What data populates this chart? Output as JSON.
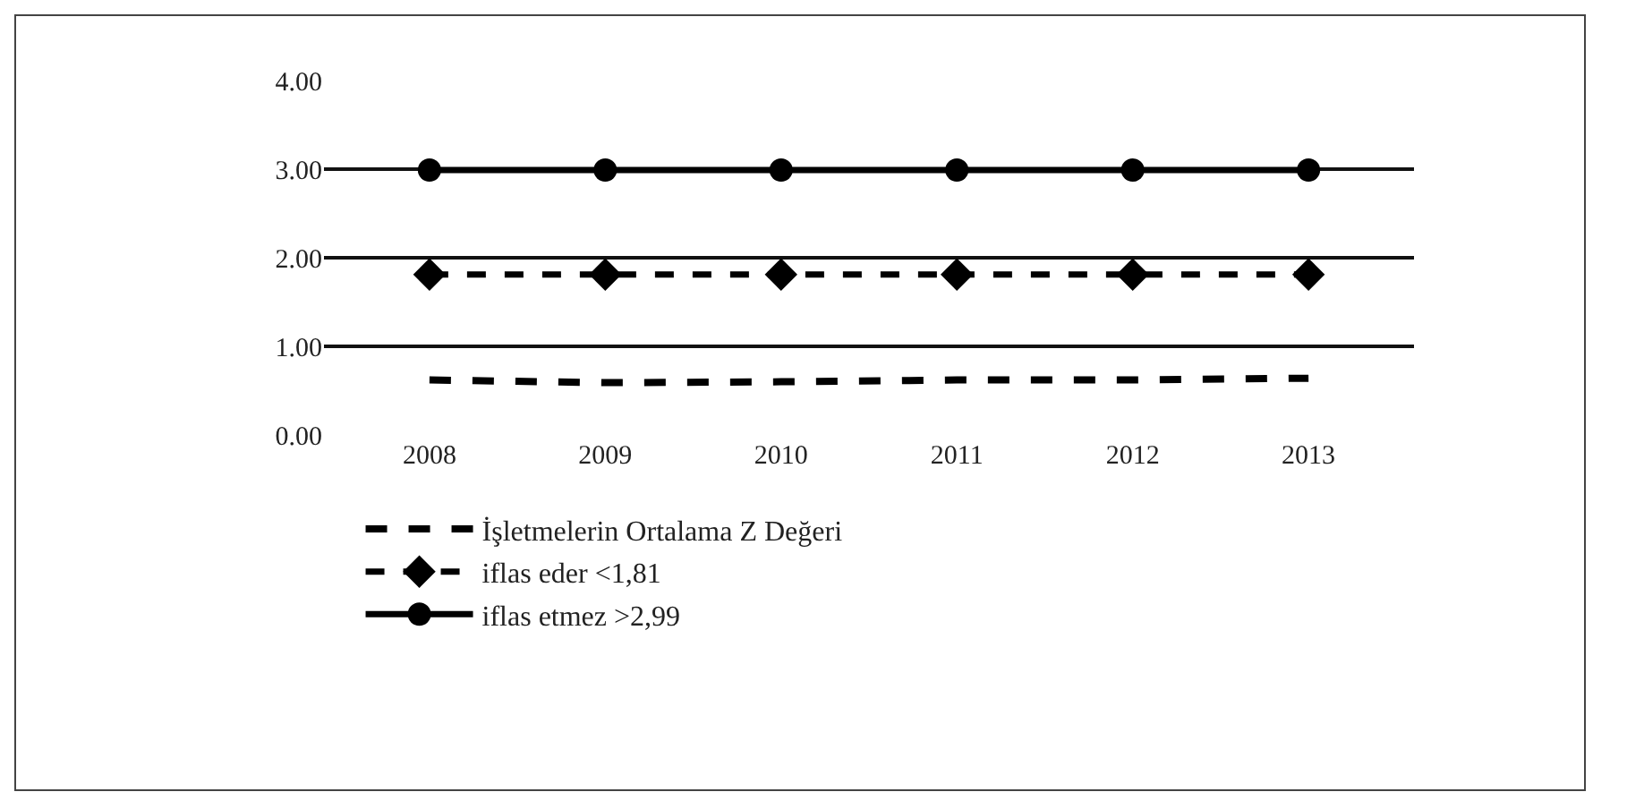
{
  "chart_data": {
    "type": "line",
    "categories": [
      "2008",
      "2009",
      "2010",
      "2011",
      "2012",
      "2013"
    ],
    "series": [
      {
        "name": "İşletmelerin Ortalama Z Değeri",
        "color": "#000000",
        "values": [
          0.62,
          0.59,
          0.6,
          0.62,
          0.62,
          0.64
        ],
        "line_style": "dashed",
        "marker": "none"
      },
      {
        "name": "iflas eder <1,81",
        "color": "#000000",
        "values": [
          1.81,
          1.81,
          1.81,
          1.81,
          1.81,
          1.81
        ],
        "line_style": "dashed",
        "marker": "diamond"
      },
      {
        "name": "iflas etmez >2,99",
        "color": "#000000",
        "values": [
          2.99,
          2.99,
          2.99,
          2.99,
          2.99,
          2.99
        ],
        "line_style": "solid",
        "marker": "circle"
      }
    ],
    "ylim": [
      0,
      4
    ],
    "yticks": [
      {
        "value": 0,
        "label": "0.00"
      },
      {
        "value": 1,
        "label": "1.00"
      },
      {
        "value": 2,
        "label": "2.00"
      },
      {
        "value": 3,
        "label": "3.00"
      },
      {
        "value": 4,
        "label": "4.00"
      }
    ],
    "grid": "y",
    "legend": "bottom"
  }
}
